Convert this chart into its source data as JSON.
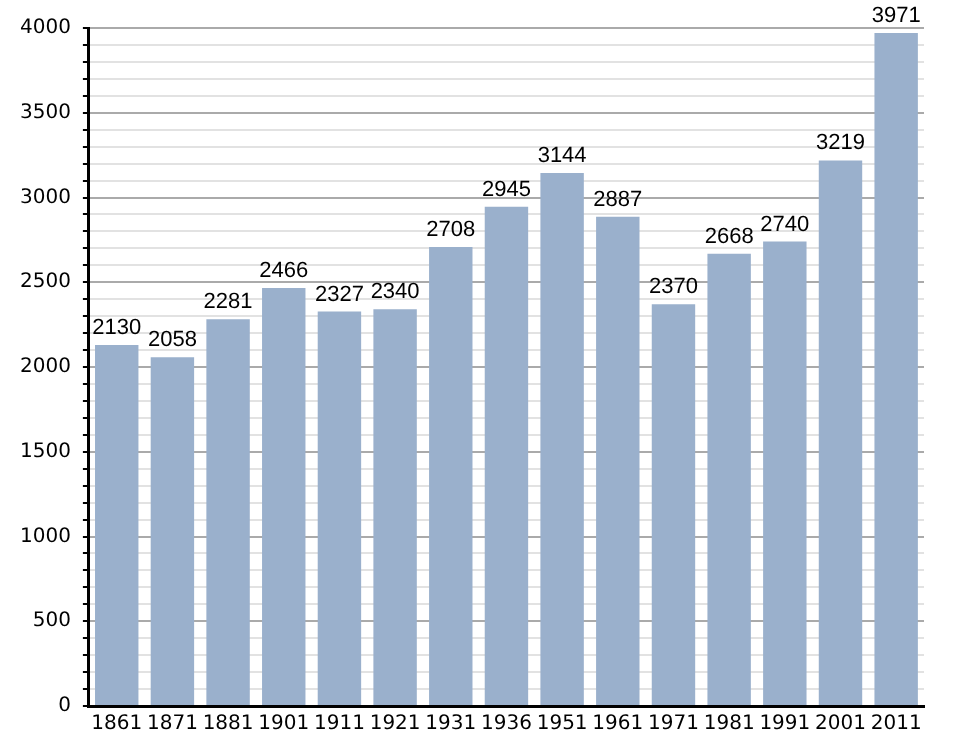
{
  "chart_data": {
    "type": "bar",
    "categories": [
      "1861",
      "1871",
      "1881",
      "1901",
      "1911",
      "1921",
      "1931",
      "1936",
      "1951",
      "1961",
      "1971",
      "1981",
      "1991",
      "2001",
      "2011"
    ],
    "values": [
      2130,
      2058,
      2281,
      2466,
      2327,
      2340,
      2708,
      2945,
      3144,
      2887,
      2370,
      2668,
      2740,
      3219,
      3971
    ],
    "color": "#9ab0cc",
    "data_labels": true,
    "grid": true,
    "ylim": [
      0,
      4000
    ],
    "yticks": [
      0,
      {
        "value": 100,
        "label": null
      },
      {
        "value": 200,
        "label": null
      },
      {
        "value": 300,
        "label": null
      },
      {
        "value": 400,
        "label": null
      },
      500,
      {
        "value": 600,
        "label": null
      },
      {
        "value": 700,
        "label": null
      },
      {
        "value": 800,
        "label": null
      },
      {
        "value": 900,
        "label": null
      },
      1000,
      {
        "value": 1100,
        "label": null
      },
      {
        "value": 1200,
        "label": null
      },
      {
        "value": 1300,
        "label": null
      },
      {
        "value": 1400,
        "label": null
      },
      1500,
      {
        "value": 1600,
        "label": null
      },
      {
        "value": 1700,
        "label": null
      },
      {
        "value": 1800,
        "label": null
      },
      {
        "value": 1900,
        "label": null
      },
      2000,
      {
        "value": 2100,
        "label": null
      },
      {
        "value": 2200,
        "label": null
      },
      {
        "value": 2300,
        "label": null
      },
      {
        "value": 2400,
        "label": null
      },
      2500,
      {
        "value": 2600,
        "label": null
      },
      {
        "value": 2700,
        "label": null
      },
      {
        "value": 2800,
        "label": null
      },
      {
        "value": 2900,
        "label": null
      },
      3000,
      {
        "value": 3100,
        "label": null
      },
      {
        "value": 3200,
        "label": null
      },
      {
        "value": 3300,
        "label": null
      },
      {
        "value": 3400,
        "label": null
      },
      3500,
      {
        "value": 3600,
        "label": null
      },
      {
        "value": 3700,
        "label": null
      },
      {
        "value": 3800,
        "label": null
      },
      {
        "value": 3900,
        "label": null
      },
      4000
    ]
  }
}
